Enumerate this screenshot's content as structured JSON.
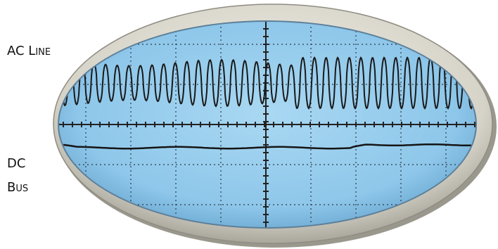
{
  "labels": {
    "ac_line": "AC Line",
    "dc_bus": [
      "DC",
      "Bus"
    ]
  }
}
